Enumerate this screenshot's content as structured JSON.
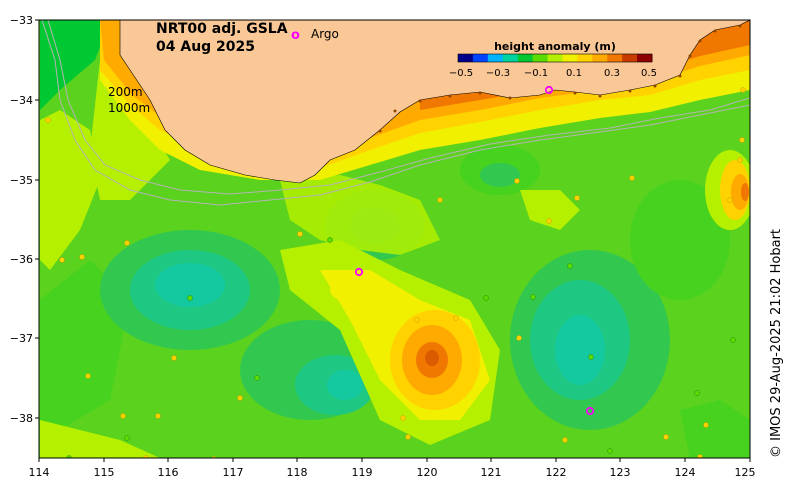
{
  "map": {
    "title_line1": "NRT00 adj. GSLA",
    "title_line2": "04 Aug 2025",
    "argo_label": "Argo",
    "argo_symbol": "o",
    "isobath_200": "200m",
    "isobath_1000": "1000m",
    "credit": "© IMOS 29-Aug-2025 21:02 Hobart",
    "lon_ticks": [
      "114",
      "115",
      "116",
      "117",
      "118",
      "119",
      "120",
      "121",
      "122",
      "123",
      "124",
      "125"
    ],
    "lat_ticks": [
      "−33",
      "−34",
      "−35",
      "−36",
      "−37",
      "−38"
    ],
    "colorbar": {
      "title": "height anomaly (m)",
      "ticks": [
        "−0.5",
        "−0.3",
        "−0.1",
        "0.1",
        "0.3",
        "0.5"
      ],
      "colors": [
        "#00008c",
        "#0044ff",
        "#00b4ff",
        "#00d2a0",
        "#00c832",
        "#5adc00",
        "#b4f000",
        "#f0f000",
        "#ffd200",
        "#ffaa00",
        "#f07800",
        "#c83c00",
        "#8c0000"
      ]
    },
    "colors": {
      "land": "#fac896",
      "ocean_background": "#5ad21e",
      "argo_marker": "#ff00ff",
      "isobath": "#b4b4b4"
    }
  }
}
